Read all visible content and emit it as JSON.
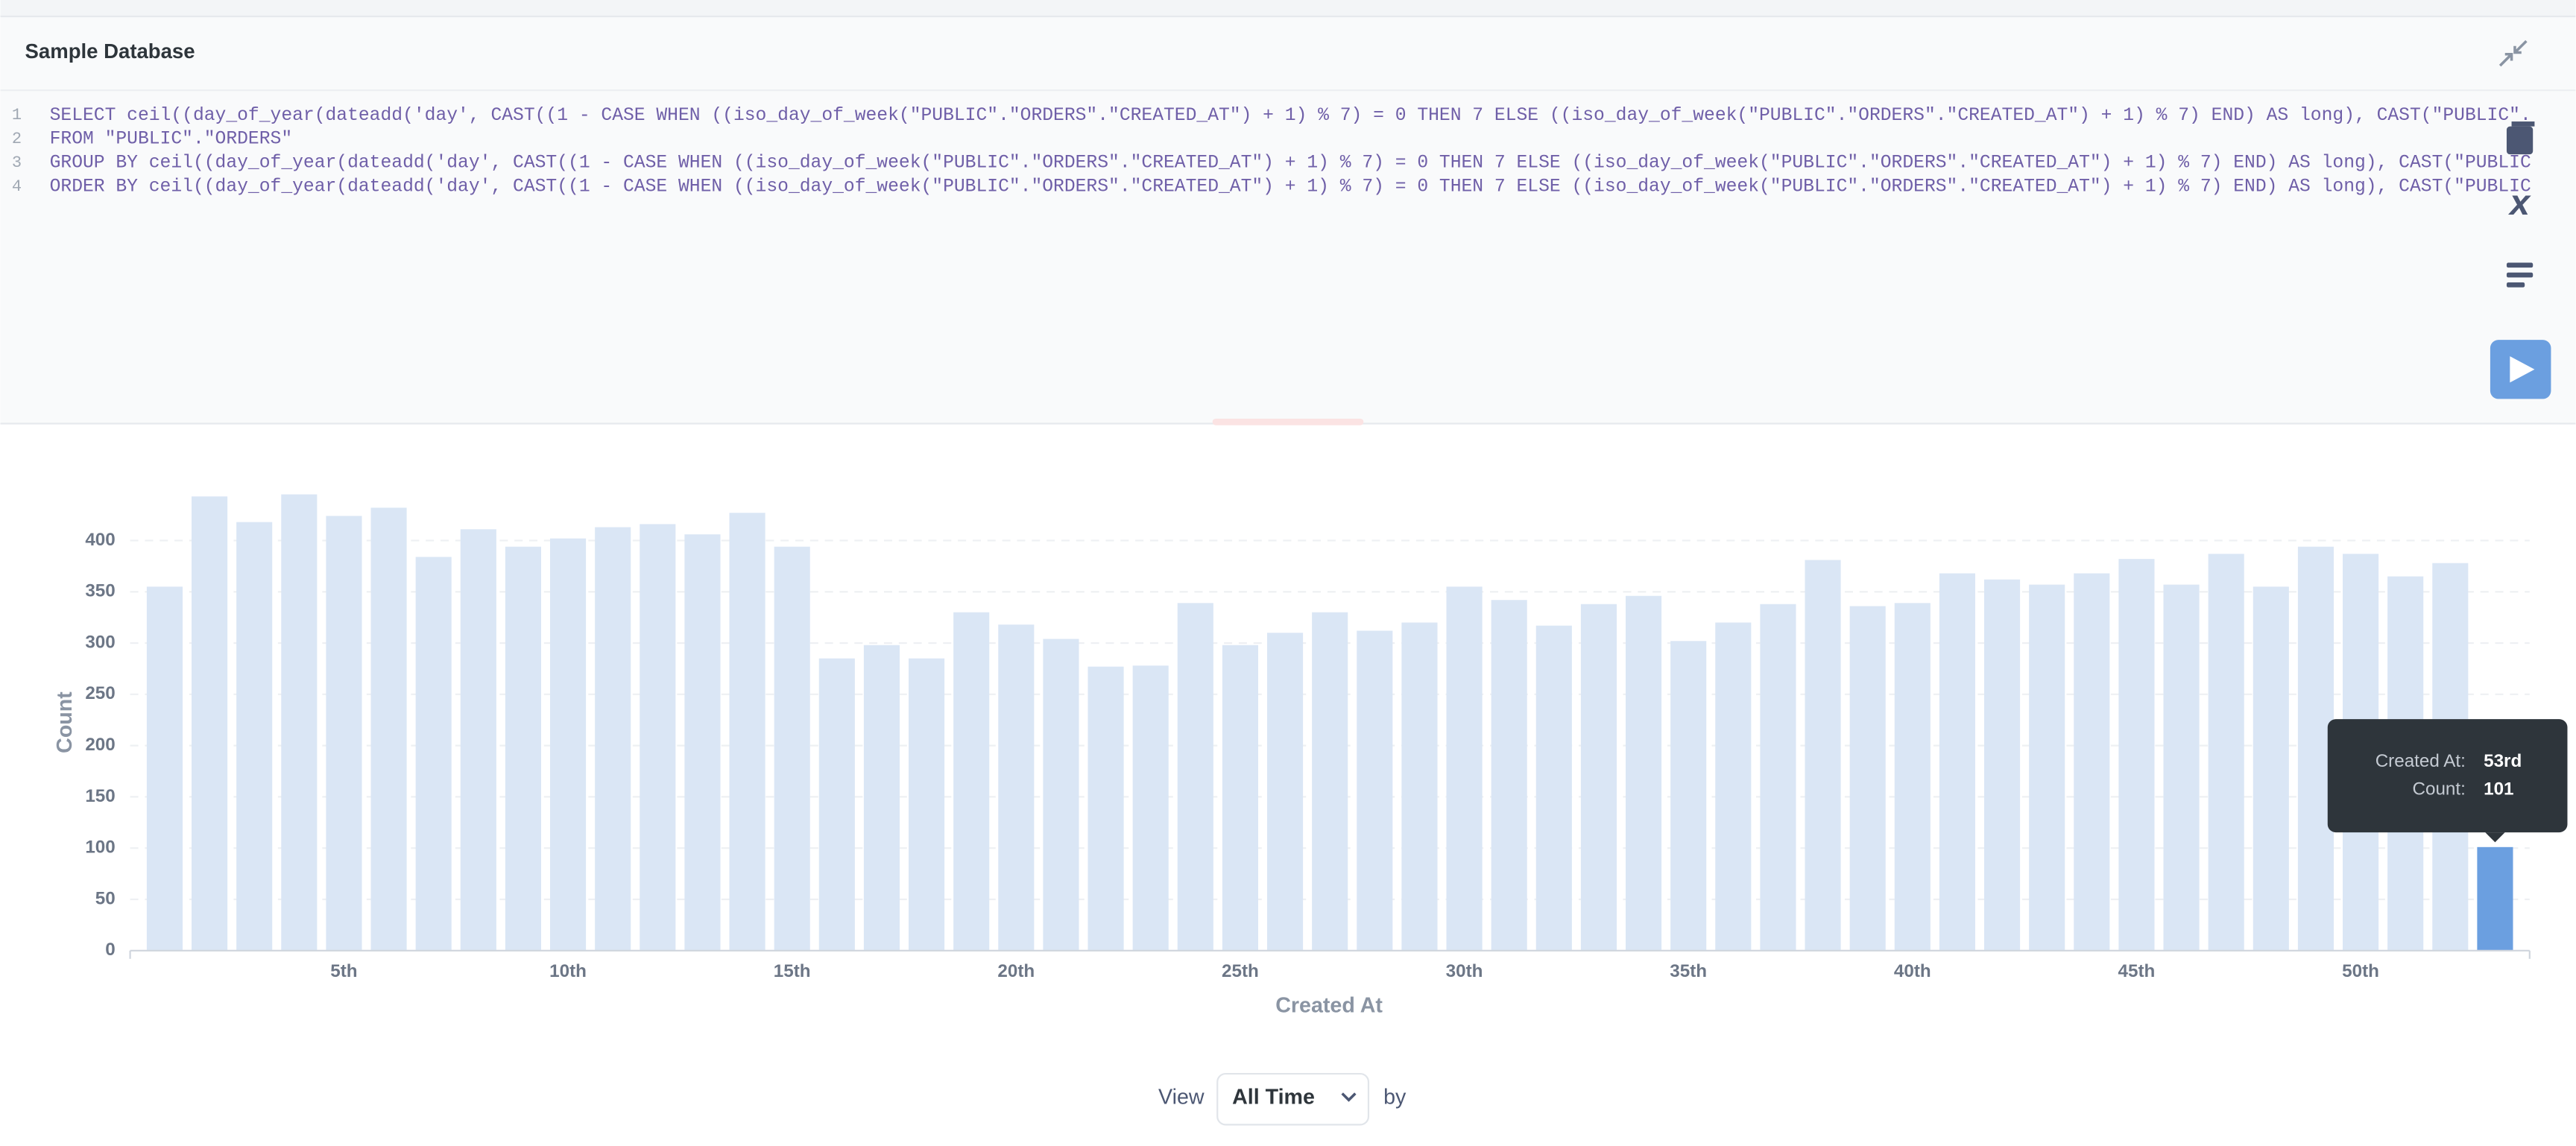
{
  "header": {
    "title": "Sample Database"
  },
  "editor": {
    "line_numbers": [
      1,
      2,
      3,
      4
    ],
    "lines": [
      "SELECT ceil((day_of_year(dateadd('day', CAST((1 - CASE WHEN ((iso_day_of_week(\"PUBLIC\".\"ORDERS\".\"CREATED_AT\") + 1) % 7) = 0 THEN 7 ELSE ((iso_day_of_week(\"PUBLIC\".\"ORDERS\".\"CREATED_AT\") + 1) % 7) END) AS long), CAST(\"PUBLIC\".",
      "FROM \"PUBLIC\".\"ORDERS\"",
      "GROUP BY ceil((day_of_year(dateadd('day', CAST((1 - CASE WHEN ((iso_day_of_week(\"PUBLIC\".\"ORDERS\".\"CREATED_AT\") + 1) % 7) = 0 THEN 7 ELSE ((iso_day_of_week(\"PUBLIC\".\"ORDERS\".\"CREATED_AT\") + 1) % 7) END) AS long), CAST(\"PUBLIC",
      "ORDER BY ceil((day_of_year(dateadd('day', CAST((1 - CASE WHEN ((iso_day_of_week(\"PUBLIC\".\"ORDERS\".\"CREATED_AT\") + 1) % 7) = 0 THEN 7 ELSE ((iso_day_of_week(\"PUBLIC\".\"ORDERS\".\"CREATED_AT\") + 1) % 7) END) AS long), CAST(\"PUBLIC"
    ]
  },
  "chart_data": {
    "type": "bar",
    "x_label": "Created At",
    "y_label": "Count",
    "categories": [
      null,
      null,
      null,
      null,
      "5th",
      null,
      null,
      null,
      null,
      "10th",
      null,
      null,
      null,
      null,
      "15th",
      null,
      null,
      null,
      null,
      "20th",
      null,
      null,
      null,
      null,
      "25th",
      null,
      null,
      null,
      null,
      "30th",
      null,
      null,
      null,
      null,
      "35th",
      null,
      null,
      null,
      null,
      "40th",
      null,
      null,
      null,
      null,
      "45th",
      null,
      null,
      null,
      null,
      "50th",
      null,
      null,
      null
    ],
    "values": [
      355,
      443,
      418,
      445,
      424,
      432,
      384,
      411,
      394,
      402,
      413,
      416,
      406,
      427,
      394,
      285,
      298,
      285,
      330,
      318,
      304,
      277,
      278,
      339,
      298,
      310,
      330,
      312,
      320,
      355,
      342,
      317,
      338,
      346,
      302,
      320,
      338,
      381,
      336,
      339,
      368,
      362,
      357,
      368,
      382,
      357,
      387,
      355,
      394,
      387,
      365,
      378,
      101
    ],
    "color": "#dae6f5",
    "highlight_color": "#6b9fe0",
    "ylim": [
      0,
      450
    ],
    "yticks": [
      0,
      50,
      100,
      150,
      200,
      250,
      300,
      350,
      400
    ],
    "grid": true,
    "tooltip": {
      "category_label": "Created At:",
      "category": "53rd",
      "value_label": "Count:"
    }
  },
  "footer": {
    "view_label": "View",
    "period": "All Time",
    "by_label": "by"
  }
}
